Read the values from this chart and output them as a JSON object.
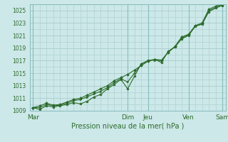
{
  "title": "",
  "xlabel": "Pression niveau de la mer( hPa )",
  "bg_color": "#cce8e8",
  "grid_color": "#aacccc",
  "line_color": "#2d6b2d",
  "ylim": [
    1009,
    1026
  ],
  "yticks": [
    1009,
    1011,
    1013,
    1015,
    1017,
    1019,
    1021,
    1023,
    1025
  ],
  "day_labels": [
    "Mar",
    "Dim",
    "Jeu",
    "Ven",
    "Sam"
  ],
  "day_positions": [
    0,
    14,
    17,
    23,
    28
  ],
  "xlim": [
    -0.5,
    28.5
  ],
  "series1_x": [
    0,
    1,
    2,
    3,
    4,
    5,
    6,
    7,
    8,
    9,
    10,
    11,
    12,
    13,
    14,
    15,
    16,
    17,
    18,
    19,
    20,
    21,
    22,
    23,
    24,
    25,
    26,
    27,
    28
  ],
  "series1_y": [
    1009.5,
    1009.2,
    1009.8,
    1009.6,
    1009.8,
    1010.0,
    1010.3,
    1010.1,
    1010.5,
    1011.2,
    1011.6,
    1012.5,
    1013.2,
    1014.0,
    1012.5,
    1014.5,
    1016.5,
    1017.0,
    1017.2,
    1016.7,
    1018.5,
    1019.2,
    1020.5,
    1021.0,
    1022.5,
    1022.8,
    1024.8,
    1025.4,
    1025.8
  ],
  "series2_x": [
    0,
    1,
    2,
    3,
    4,
    5,
    6,
    7,
    8,
    9,
    10,
    11,
    12,
    13,
    14,
    15,
    16,
    17,
    18,
    19,
    20,
    21,
    22,
    23,
    24,
    25,
    26,
    27,
    28
  ],
  "series2_y": [
    1009.5,
    1009.8,
    1010.2,
    1009.9,
    1010.0,
    1010.4,
    1010.8,
    1011.0,
    1011.5,
    1012.0,
    1012.5,
    1013.0,
    1013.8,
    1014.3,
    1014.8,
    1015.5,
    1016.2,
    1016.9,
    1017.2,
    1017.1,
    1018.3,
    1019.3,
    1020.8,
    1021.2,
    1022.6,
    1023.0,
    1025.2,
    1025.7,
    1026.0
  ],
  "series3_x": [
    0,
    1,
    2,
    3,
    4,
    5,
    6,
    7,
    8,
    9,
    10,
    11,
    12,
    13,
    14,
    15,
    16,
    17,
    18,
    19,
    20,
    21,
    22,
    23,
    24,
    25,
    26,
    27,
    28
  ],
  "series3_y": [
    1009.5,
    1009.5,
    1010.0,
    1009.8,
    1009.9,
    1010.2,
    1010.6,
    1010.8,
    1011.2,
    1011.7,
    1012.1,
    1012.7,
    1013.5,
    1014.1,
    1013.6,
    1015.0,
    1016.4,
    1017.0,
    1017.1,
    1017.0,
    1018.4,
    1019.2,
    1020.6,
    1021.1,
    1022.5,
    1022.9,
    1025.0,
    1025.5,
    1025.9
  ]
}
